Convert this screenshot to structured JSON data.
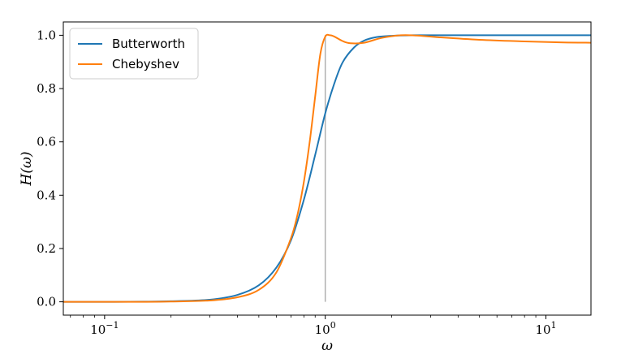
{
  "chart_data": {
    "type": "line",
    "xlabel": "ω",
    "ylabel": "H(ω)",
    "xscale": "log",
    "xlim": [
      0.065,
      16
    ],
    "ylim": [
      -0.05,
      1.05
    ],
    "grid": false,
    "legend_position": "top-left",
    "x_ticks": [
      {
        "value": 0.1,
        "base": "10",
        "exp": "−1"
      },
      {
        "value": 1,
        "base": "10",
        "exp": "0"
      },
      {
        "value": 10,
        "base": "10",
        "exp": "1"
      }
    ],
    "y_ticks": [
      {
        "value": 0.0,
        "label": "0.0"
      },
      {
        "value": 0.2,
        "label": "0.2"
      },
      {
        "value": 0.4,
        "label": "0.4"
      },
      {
        "value": 0.6,
        "label": "0.6"
      },
      {
        "value": 0.8,
        "label": "0.8"
      },
      {
        "value": 1.0,
        "label": "1.0"
      }
    ],
    "reference_line": {
      "x": 1,
      "y_range": [
        0,
        1
      ],
      "color": "#b0b0b0"
    },
    "series": [
      {
        "name": "Butterworth",
        "color": "#1f77b4",
        "x": [
          0.065,
          0.1,
          0.15,
          0.2,
          0.3,
          0.4,
          0.5,
          0.6,
          0.7,
          0.8,
          0.9,
          1.0,
          1.1,
          1.2,
          1.35,
          1.5,
          1.7,
          2.0,
          2.5,
          3,
          5,
          10,
          16
        ],
        "y": [
          0.0,
          0.0,
          0.0005,
          0.002,
          0.008,
          0.026,
          0.062,
          0.128,
          0.232,
          0.383,
          0.551,
          0.707,
          0.82,
          0.899,
          0.954,
          0.98,
          0.993,
          0.998,
          1.0,
          1.0,
          1.0,
          1.0,
          1.0
        ]
      },
      {
        "name": "Chebyshev",
        "color": "#ff7f0e",
        "x": [
          0.065,
          0.1,
          0.15,
          0.2,
          0.3,
          0.4,
          0.5,
          0.6,
          0.7,
          0.75,
          0.8,
          0.85,
          0.9,
          0.95,
          1.0,
          1.05,
          1.1,
          1.2,
          1.3,
          1.5,
          1.8,
          2.2,
          2.6,
          3.2,
          5,
          8,
          12,
          16
        ],
        "y": [
          0.0,
          0.0,
          0.0,
          0.001,
          0.005,
          0.017,
          0.045,
          0.11,
          0.24,
          0.33,
          0.45,
          0.6,
          0.77,
          0.93,
          0.995,
          1.0,
          0.995,
          0.978,
          0.97,
          0.972,
          0.99,
          1.0,
          0.999,
          0.993,
          0.983,
          0.977,
          0.973,
          0.972
        ]
      }
    ]
  }
}
